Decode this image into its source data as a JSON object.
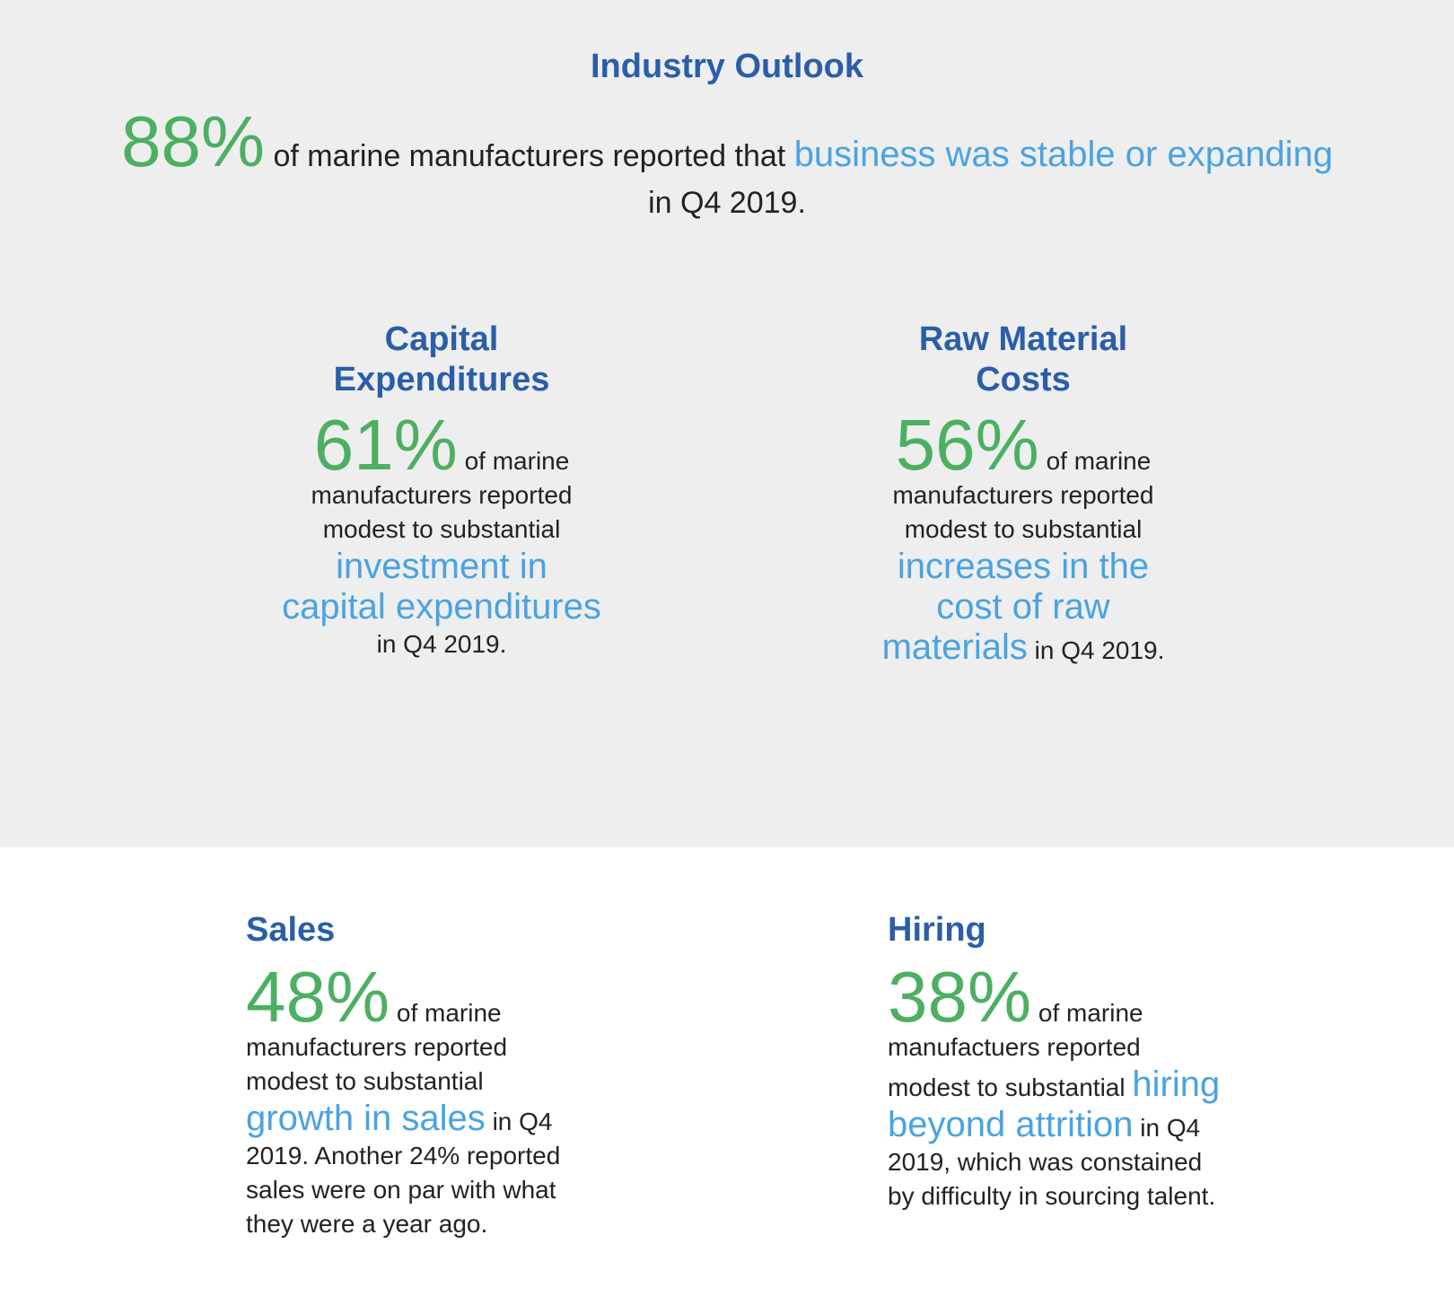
{
  "outlook": {
    "title": "Industry Outlook",
    "stat": "88%",
    "text_before": " of marine manufacturers reported that ",
    "highlight": "business was stable or expanding",
    "text_after": " in Q4 2019."
  },
  "cards": {
    "capex": {
      "heading_line1": "Capital",
      "heading_line2": "Expenditures",
      "stat": "61%",
      "text_before": " of marine manufacturers reported modest to substantial ",
      "highlight": "investment in capital expenditures",
      "text_after": " in Q4 2019."
    },
    "raw": {
      "heading_line1": "Raw Material",
      "heading_line2": "Costs",
      "stat": "56%",
      "text_before": " of marine manufacturers reported modest to substantial ",
      "highlight": "increases in the cost of raw materials",
      "text_after": " in Q4 2019."
    },
    "sales": {
      "heading": "Sales",
      "stat": "48%",
      "text_before": " of marine manufacturers reported modest to substantial ",
      "highlight": "growth in sales",
      "text_after": " in Q4 2019. Another 24% reported sales were on par with what they were a year ago."
    },
    "hiring": {
      "heading": "Hiring",
      "stat": "38%",
      "text_before": " of marine manufactuers reported modest to substantial ",
      "highlight": "hiring beyond attrition",
      "text_after": " in Q4 2019, which was constained by difficulty in sourcing talent."
    }
  }
}
